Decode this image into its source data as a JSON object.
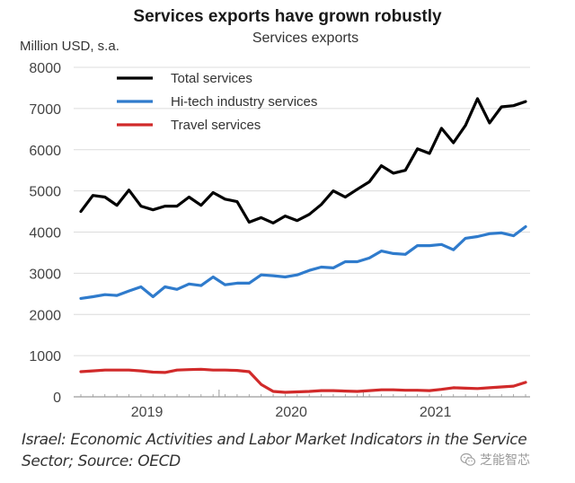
{
  "chart_data": {
    "type": "line",
    "title": "Services exports have grown robustly",
    "subtitle": "Services exports",
    "xlabel": "",
    "ylabel": "Million USD, s.a.",
    "ylim": [
      0,
      8000
    ],
    "yticks": [
      0,
      1000,
      2000,
      3000,
      4000,
      5000,
      6000,
      7000,
      8000
    ],
    "ytick_labels": [
      "0",
      "1000",
      "2000",
      "3000",
      "4000",
      "5000",
      "6000",
      "7000",
      "8000"
    ],
    "x_frequency": "monthly",
    "x_count": 38,
    "xtick_labels": [
      {
        "label": "2019",
        "center_index": 5.5
      },
      {
        "label": "2020",
        "center_index": 17.5
      },
      {
        "label": "2021",
        "center_index": 29.5
      }
    ],
    "year_boundary_indices": [
      11.5,
      23.5
    ],
    "grid": "horizontal",
    "legend_position": "top-left",
    "series": [
      {
        "name": "Total services",
        "color": "#000000",
        "values": [
          4500,
          4890,
          4850,
          4650,
          5020,
          4630,
          4540,
          4630,
          4630,
          4850,
          4650,
          4960,
          4800,
          4740,
          4240,
          4350,
          4220,
          4390,
          4280,
          4430,
          4670,
          5000,
          4850,
          5040,
          5220,
          5610,
          5430,
          5500,
          6020,
          5910,
          6520,
          6170,
          6590,
          7240,
          6650,
          7040,
          7070,
          7170
        ]
      },
      {
        "name": "Hi-tech industry services",
        "color": "#2f7bcc",
        "values": [
          2390,
          2430,
          2480,
          2460,
          2570,
          2670,
          2430,
          2670,
          2610,
          2740,
          2700,
          2910,
          2720,
          2760,
          2760,
          2960,
          2940,
          2910,
          2960,
          3070,
          3150,
          3130,
          3280,
          3280,
          3370,
          3540,
          3480,
          3460,
          3670,
          3670,
          3700,
          3570,
          3850,
          3890,
          3960,
          3980,
          3910,
          4130
        ]
      },
      {
        "name": "Travel services",
        "color": "#d12a2a",
        "values": [
          610,
          630,
          650,
          650,
          650,
          630,
          600,
          590,
          650,
          660,
          670,
          650,
          650,
          640,
          610,
          300,
          130,
          110,
          120,
          130,
          150,
          150,
          140,
          130,
          150,
          170,
          170,
          160,
          160,
          150,
          180,
          220,
          210,
          200,
          220,
          240,
          260,
          350
        ]
      }
    ]
  },
  "caption": {
    "line1": "Israel: Economic Activities and Labor Market Indicators in the Service",
    "line2": "Sector; Source: OECD"
  },
  "watermark": {
    "icon": "wechat-icon",
    "text": "芝能智芯"
  }
}
